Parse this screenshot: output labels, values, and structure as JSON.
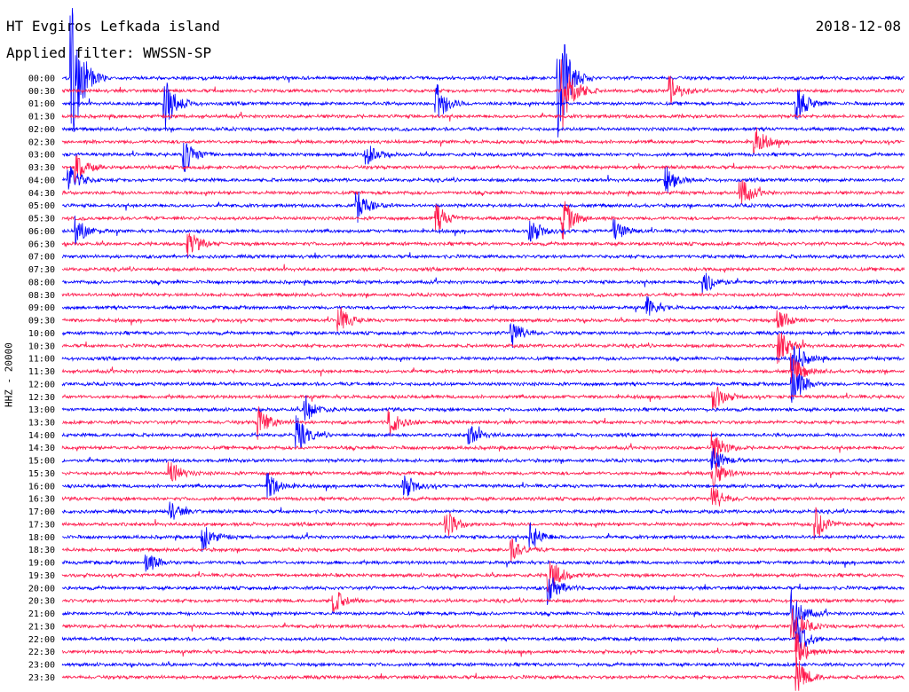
{
  "header": {
    "title": "HT Evgiros Lefkada island",
    "filter": "Applied filter: WWSSN-SP",
    "date": "2018-12-08"
  },
  "chart_data": {
    "type": "line",
    "ylabel": "HHZ - 20000",
    "trace_colors": [
      "#0000ff",
      "#ff1a4d"
    ],
    "x_unit": "seconds within 30-minute row",
    "x_range": [
      0,
      1800
    ],
    "rows": [
      "00:00",
      "00:30",
      "01:00",
      "01:30",
      "02:00",
      "02:30",
      "03:00",
      "03:30",
      "04:00",
      "04:30",
      "05:00",
      "05:30",
      "06:00",
      "06:30",
      "07:00",
      "07:30",
      "08:00",
      "08:30",
      "09:00",
      "09:30",
      "10:00",
      "10:30",
      "11:00",
      "11:30",
      "12:00",
      "12:30",
      "13:00",
      "13:30",
      "14:00",
      "14:30",
      "15:00",
      "15:30",
      "16:00",
      "16:30",
      "17:00",
      "17:30",
      "18:00",
      "18:30",
      "19:00",
      "19:30",
      "20:00",
      "20:30",
      "21:00",
      "21:30",
      "22:00",
      "22:30",
      "23:00",
      "23:30"
    ],
    "events": [
      {
        "row": 0,
        "t": 20,
        "amp": 6
      },
      {
        "row": 0,
        "t": 1060,
        "amp": 5
      },
      {
        "row": 1,
        "t": 1070,
        "amp": 3
      },
      {
        "row": 1,
        "t": 1300,
        "amp": 1
      },
      {
        "row": 2,
        "t": 220,
        "amp": 2
      },
      {
        "row": 2,
        "t": 800,
        "amp": 1.5
      },
      {
        "row": 2,
        "t": 1570,
        "amp": 1.3
      },
      {
        "row": 5,
        "t": 1480,
        "amp": 1.2
      },
      {
        "row": 6,
        "t": 260,
        "amp": 1.4
      },
      {
        "row": 6,
        "t": 650,
        "amp": 0.8
      },
      {
        "row": 7,
        "t": 30,
        "amp": 1
      },
      {
        "row": 8,
        "t": 15,
        "amp": 1.2
      },
      {
        "row": 8,
        "t": 1290,
        "amp": 1
      },
      {
        "row": 9,
        "t": 1450,
        "amp": 1.1
      },
      {
        "row": 10,
        "t": 630,
        "amp": 1.2
      },
      {
        "row": 11,
        "t": 800,
        "amp": 1
      },
      {
        "row": 11,
        "t": 1070,
        "amp": 1.5
      },
      {
        "row": 12,
        "t": 30,
        "amp": 1
      },
      {
        "row": 12,
        "t": 1000,
        "amp": 1
      },
      {
        "row": 12,
        "t": 1180,
        "amp": 0.8
      },
      {
        "row": 13,
        "t": 270,
        "amp": 1
      },
      {
        "row": 16,
        "t": 1370,
        "amp": 1
      },
      {
        "row": 18,
        "t": 1250,
        "amp": 0.8
      },
      {
        "row": 19,
        "t": 590,
        "amp": 1.1
      },
      {
        "row": 19,
        "t": 1530,
        "amp": 1
      },
      {
        "row": 20,
        "t": 960,
        "amp": 1.1
      },
      {
        "row": 21,
        "t": 1530,
        "amp": 1.4
      },
      {
        "row": 22,
        "t": 1560,
        "amp": 1.5
      },
      {
        "row": 23,
        "t": 1560,
        "amp": 1.2
      },
      {
        "row": 24,
        "t": 1560,
        "amp": 1.6
      },
      {
        "row": 25,
        "t": 1390,
        "amp": 1.2
      },
      {
        "row": 26,
        "t": 520,
        "amp": 1
      },
      {
        "row": 27,
        "t": 420,
        "amp": 1.2
      },
      {
        "row": 27,
        "t": 700,
        "amp": 1
      },
      {
        "row": 28,
        "t": 500,
        "amp": 1.4
      },
      {
        "row": 28,
        "t": 870,
        "amp": 0.8
      },
      {
        "row": 29,
        "t": 1390,
        "amp": 1.2
      },
      {
        "row": 30,
        "t": 1390,
        "amp": 1
      },
      {
        "row": 31,
        "t": 230,
        "amp": 1
      },
      {
        "row": 31,
        "t": 1390,
        "amp": 1.1
      },
      {
        "row": 32,
        "t": 440,
        "amp": 1
      },
      {
        "row": 32,
        "t": 730,
        "amp": 1
      },
      {
        "row": 33,
        "t": 1390,
        "amp": 1
      },
      {
        "row": 34,
        "t": 230,
        "amp": 0.7
      },
      {
        "row": 35,
        "t": 820,
        "amp": 1.1
      },
      {
        "row": 35,
        "t": 1610,
        "amp": 1.3
      },
      {
        "row": 36,
        "t": 300,
        "amp": 1
      },
      {
        "row": 36,
        "t": 1000,
        "amp": 1
      },
      {
        "row": 37,
        "t": 960,
        "amp": 0.8
      },
      {
        "row": 38,
        "t": 180,
        "amp": 0.8
      },
      {
        "row": 39,
        "t": 1040,
        "amp": 1.6
      },
      {
        "row": 40,
        "t": 1040,
        "amp": 1.2
      },
      {
        "row": 41,
        "t": 580,
        "amp": 0.9
      },
      {
        "row": 42,
        "t": 1560,
        "amp": 1.6
      },
      {
        "row": 43,
        "t": 1560,
        "amp": 1.8
      },
      {
        "row": 44,
        "t": 1570,
        "amp": 1.5
      },
      {
        "row": 45,
        "t": 1570,
        "amp": 1.4
      },
      {
        "row": 47,
        "t": 1570,
        "amp": 1.3
      }
    ]
  }
}
